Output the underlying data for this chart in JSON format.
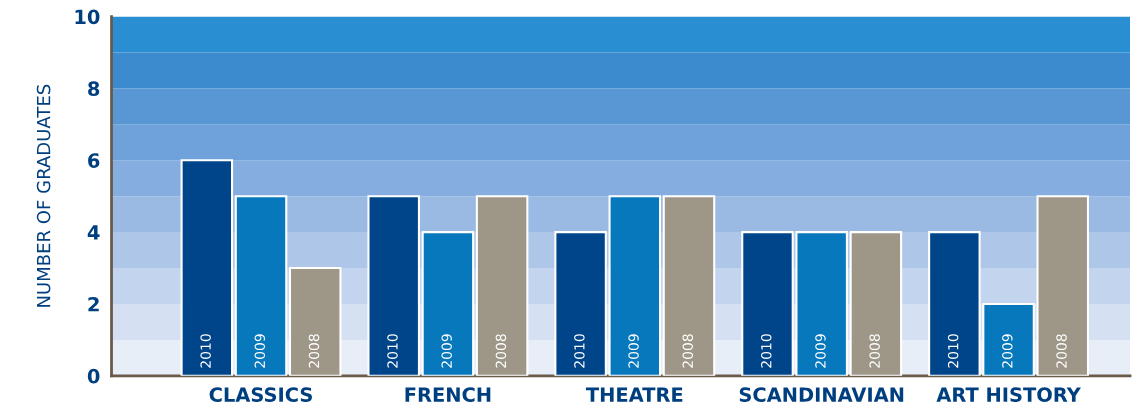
{
  "chart_data": {
    "type": "bar",
    "ylabel": "NUMBER OF GRADUATES",
    "categories": [
      "CLASSICS",
      "FRENCH",
      "THEATRE",
      "SCANDINAVIAN",
      "ART HISTORY"
    ],
    "series": [
      {
        "name": "2010",
        "color": "#00458a",
        "values": [
          6,
          5,
          4,
          4,
          4
        ]
      },
      {
        "name": "2009",
        "color": "#0878bd",
        "values": [
          5,
          4,
          5,
          4,
          2
        ]
      },
      {
        "name": "2008",
        "color": "#9e9788",
        "values": [
          3,
          5,
          5,
          4,
          5
        ]
      }
    ],
    "ylim": [
      0,
      10
    ],
    "yticks": [
      0,
      2,
      4,
      6,
      8,
      10
    ],
    "grid": false,
    "legend": false,
    "bands": [
      {
        "axis": "y",
        "from": 0,
        "to": 1,
        "color": "#e8eef8"
      },
      {
        "axis": "y",
        "from": 1,
        "to": 2,
        "color": "#d5e1f3"
      },
      {
        "axis": "y",
        "from": 2,
        "to": 3,
        "color": "#c2d4ee"
      },
      {
        "axis": "y",
        "from": 3,
        "to": 4,
        "color": "#aec7e9"
      },
      {
        "axis": "y",
        "from": 4,
        "to": 5,
        "color": "#9abae4"
      },
      {
        "axis": "y",
        "from": 5,
        "to": 6,
        "color": "#85addf"
      },
      {
        "axis": "y",
        "from": 6,
        "to": 7,
        "color": "#6fa1da"
      },
      {
        "axis": "y",
        "from": 7,
        "to": 8,
        "color": "#5896d4"
      },
      {
        "axis": "y",
        "from": 8,
        "to": 9,
        "color": "#3c8bcf"
      },
      {
        "axis": "y",
        "from": 9,
        "to": 10,
        "color": "#2a8fd2"
      }
    ]
  }
}
